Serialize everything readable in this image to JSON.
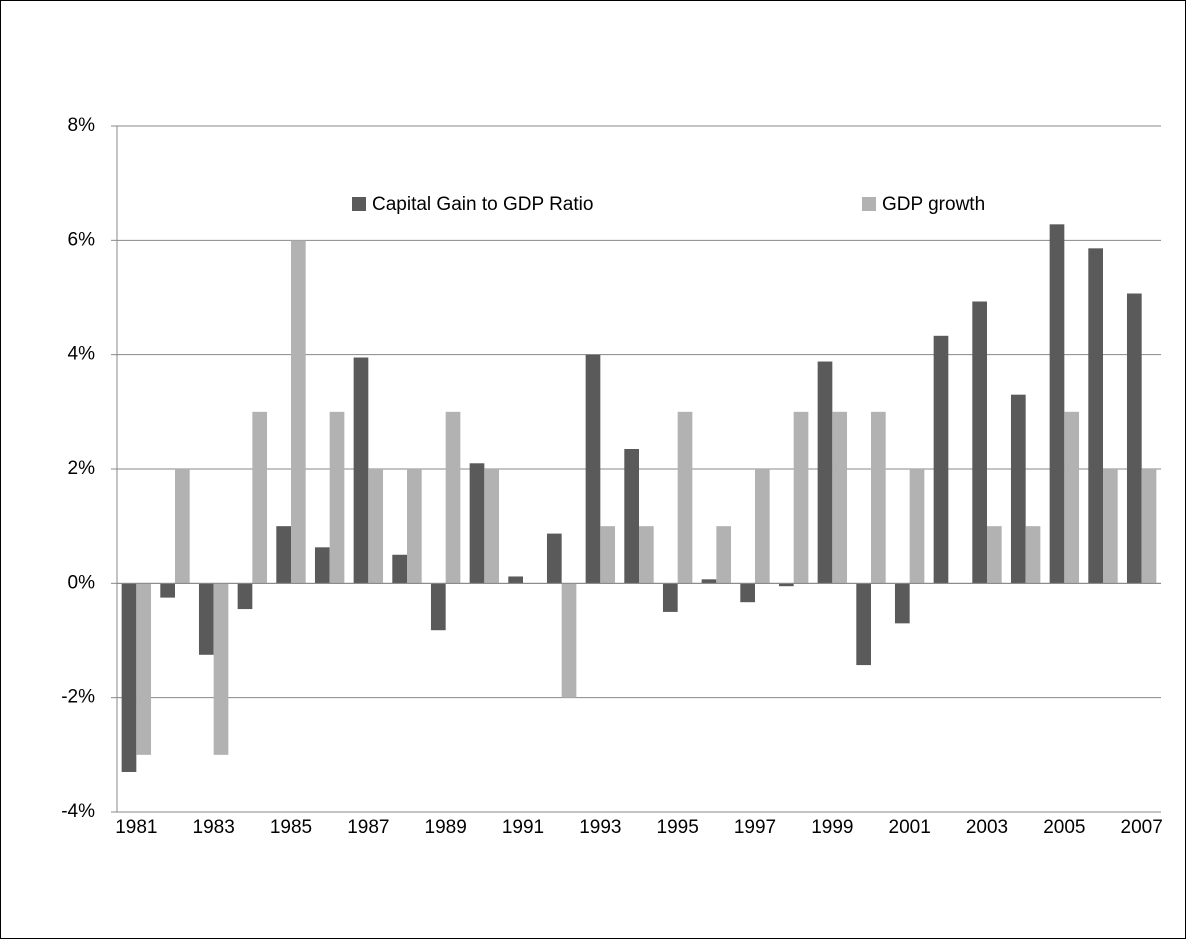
{
  "chart_data": {
    "type": "bar",
    "categories": [
      "1981",
      null,
      "1983",
      null,
      "1985",
      null,
      "1987",
      null,
      "1989",
      null,
      "1991",
      null,
      "1993",
      null,
      "1995",
      null,
      "1997",
      null,
      "1999",
      null,
      "2001",
      null,
      "2003",
      null,
      "2005",
      null,
      "2007"
    ],
    "series": [
      {
        "name": "Capital Gain to GDP Ratio",
        "color": "#5a5a5a",
        "values": [
          -3.3,
          -0.25,
          -1.25,
          -0.45,
          1.0,
          0.63,
          3.95,
          0.5,
          -0.82,
          2.1,
          0.12,
          0.87,
          4.0,
          2.35,
          -0.5,
          0.07,
          -0.33,
          -0.05,
          3.88,
          -1.43,
          -0.7,
          4.33,
          4.93,
          3.3,
          6.28,
          5.86,
          5.07
        ]
      },
      {
        "name": "GDP growth",
        "color": "#b2b2b2",
        "values": [
          -3,
          2,
          -3,
          3,
          6,
          3,
          2,
          2,
          3,
          2,
          0,
          -2,
          1,
          1,
          3,
          1,
          2,
          3,
          3,
          3,
          2,
          0,
          1,
          1,
          3,
          2,
          2
        ]
      }
    ],
    "ylim": [
      -4,
      8
    ],
    "yticks": [
      {
        "value": -4,
        "label": "-4%"
      },
      {
        "value": -2,
        "label": "-2%"
      },
      {
        "value": 0,
        "label": "0%"
      },
      {
        "value": 2,
        "label": "2%"
      },
      {
        "value": 4,
        "label": "4%"
      },
      {
        "value": 6,
        "label": "6%"
      },
      {
        "value": 8,
        "label": "8%"
      }
    ],
    "grid": true
  }
}
